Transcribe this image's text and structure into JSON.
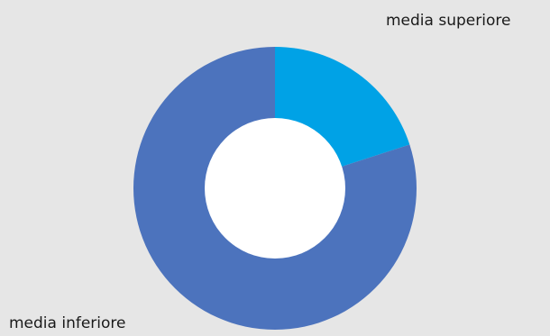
{
  "chart_data": {
    "type": "pie",
    "donut": true,
    "title": "",
    "legend": "none",
    "slices": [
      {
        "label": "media superiore",
        "value": 20,
        "color": "#00a2e6"
      },
      {
        "label": "media inferiore",
        "value": 80,
        "color": "#4c73bd"
      }
    ]
  },
  "colors": {
    "background": "#e6e6e6",
    "hole": "#ffffff"
  }
}
